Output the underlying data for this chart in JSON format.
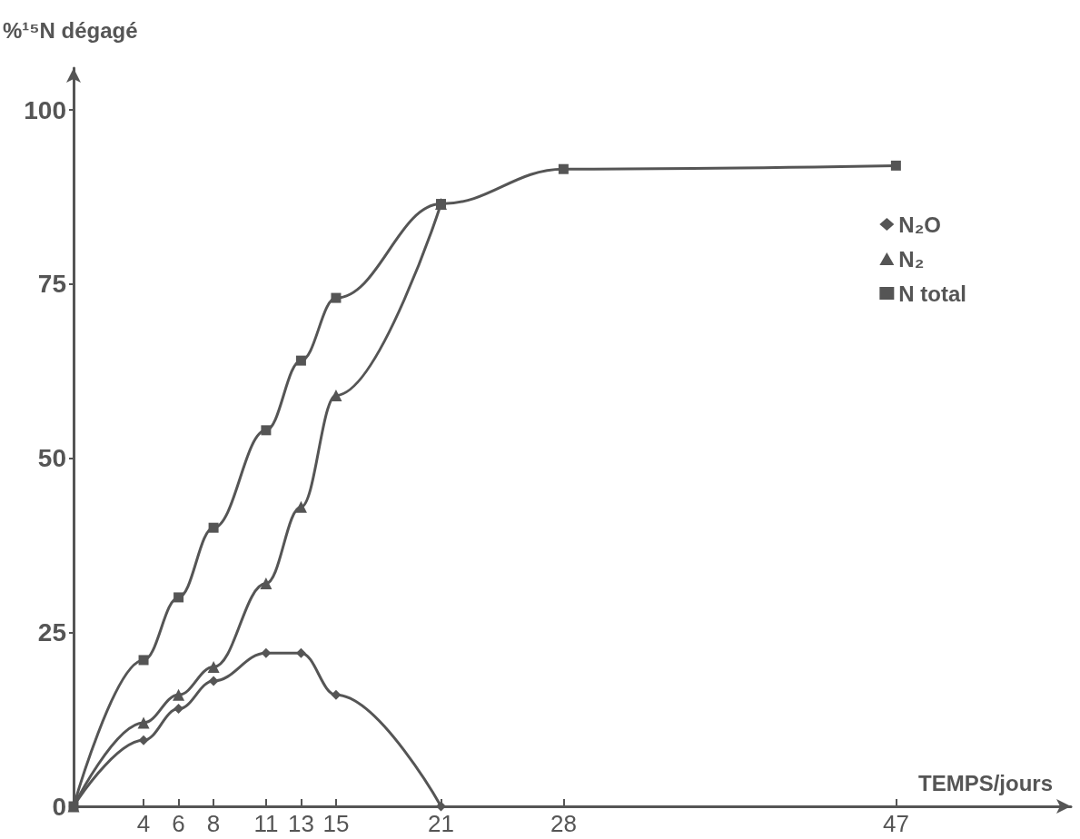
{
  "chart_data": {
    "type": "line",
    "xlabel": "TEMPS/jours",
    "ylabel": "%¹⁵N dégagé",
    "xlim": [
      0,
      57
    ],
    "xticks": [
      4,
      6,
      8,
      11,
      13,
      15,
      21,
      28,
      47
    ],
    "ylim": [
      0,
      106
    ],
    "yticks": [
      0,
      25,
      50,
      75,
      100
    ],
    "grid": false,
    "legend": "top right",
    "line_style": "solid",
    "series": [
      {
        "name": "N₂O",
        "color": "#555555",
        "marker": "diamond",
        "x": [
          0,
          4,
          6,
          8,
          11,
          13,
          15,
          21
        ],
        "values": [
          0,
          9.5,
          14,
          18,
          22,
          22,
          16,
          0
        ]
      },
      {
        "name": "N₂",
        "color": "#555555",
        "marker": "triangle",
        "x": [
          0,
          4,
          6,
          8,
          11,
          13,
          15,
          21
        ],
        "values": [
          0,
          12,
          16,
          20,
          32,
          43,
          59,
          86.5
        ]
      },
      {
        "name": "N total",
        "color": "#555555",
        "marker": "square",
        "x": [
          0,
          4,
          6,
          8,
          11,
          13,
          15,
          21,
          28,
          47
        ],
        "values": [
          0,
          21,
          30,
          40,
          54,
          64,
          73,
          86.5,
          91.5,
          92
        ]
      }
    ]
  }
}
